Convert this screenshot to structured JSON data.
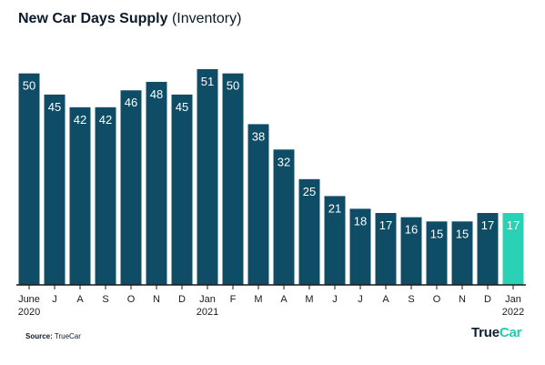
{
  "header": {
    "title_bold": "New Car Days Supply",
    "title_rest": "(Inventory)"
  },
  "footer": {
    "source_label": "Source:",
    "source_value": "TrueCar"
  },
  "brand": {
    "name_part1": "True",
    "name_part2": "Car"
  },
  "colors": {
    "bar": "#0f4c66",
    "highlight_bar": "#2bd1b4",
    "axis": "#1a1a1a",
    "label": "#ffffff",
    "tick_text": "#1a1a1a"
  },
  "chart_data": {
    "type": "bar",
    "title": "New Car Days Supply (Inventory)",
    "categories": [
      "June",
      "J",
      "A",
      "S",
      "O",
      "N",
      "D",
      "Jan",
      "F",
      "M",
      "A",
      "M",
      "J",
      "J",
      "A",
      "S",
      "O",
      "N",
      "D",
      "Jan"
    ],
    "year_labels": [
      "2020",
      "",
      "",
      "",
      "",
      "",
      "",
      "2021",
      "",
      "",
      "",
      "",
      "",
      "",
      "",
      "",
      "",
      "",
      "",
      "2022"
    ],
    "values": [
      50,
      45,
      42,
      42,
      46,
      48,
      45,
      51,
      50,
      38,
      32,
      25,
      21,
      18,
      17,
      16,
      15,
      15,
      17,
      17
    ],
    "highlight_index": 19,
    "xlabel": "",
    "ylabel": "",
    "ylim": [
      0,
      51
    ],
    "grid": false,
    "data_labels": true
  }
}
